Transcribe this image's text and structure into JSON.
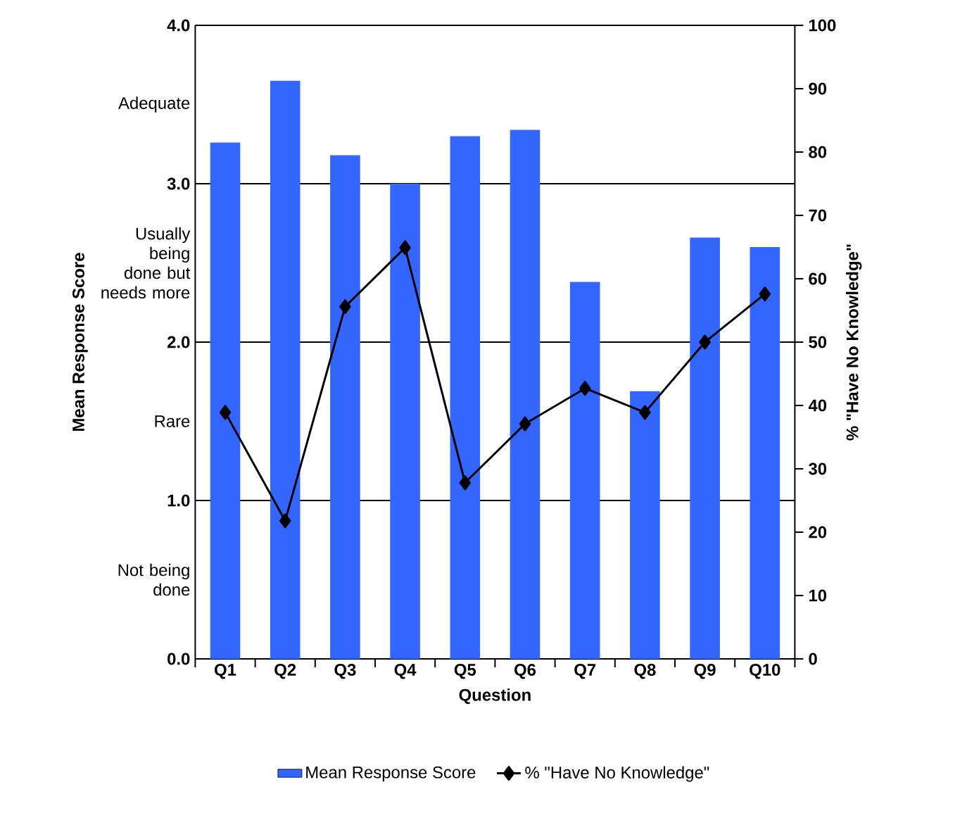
{
  "chart_data": {
    "type": "bar",
    "xlabel": "Question",
    "ylabel": "Mean Response Score",
    "y2label": "% \"Have No Knowledge\"",
    "categories": [
      "Q1",
      "Q2",
      "Q3",
      "Q4",
      "Q5",
      "Q6",
      "Q7",
      "Q8",
      "Q9",
      "Q10"
    ],
    "series": [
      {
        "name": "Mean Response Score",
        "color": "#3366ff",
        "values": [
          3.26,
          3.65,
          3.18,
          3.0,
          3.3,
          3.34,
          2.38,
          1.69,
          2.66,
          2.6
        ]
      },
      {
        "name": "% \"Have No Knowledge\"",
        "type": "line",
        "axis": "y2",
        "color": "#000000",
        "values": [
          38.9,
          21.8,
          55.6,
          64.9,
          27.8,
          37.1,
          42.7,
          38.9,
          50.0,
          57.6
        ]
      }
    ],
    "ylim": [
      0,
      4
    ],
    "yticks": [
      {
        "value": 0,
        "label": "0.0"
      },
      {
        "value": 0.5,
        "label": "Not being done"
      },
      {
        "value": 1,
        "label": "1.0"
      },
      {
        "value": 1.5,
        "label": "Rare"
      },
      {
        "value": 2,
        "label": "2.0"
      },
      {
        "value": 2.5,
        "label": "Usually being done but needs more"
      },
      {
        "value": 3,
        "label": "3.0"
      },
      {
        "value": 3.5,
        "label": "Adequate"
      },
      {
        "value": 4,
        "label": "4.0"
      }
    ],
    "y2lim": [
      0,
      100
    ],
    "y2ticks": [
      0,
      10,
      20,
      30,
      40,
      50,
      60,
      70,
      80,
      90,
      100
    ],
    "grid": "y",
    "legend": "bottom",
    "marker": "diamond",
    "line_style": "solid"
  }
}
